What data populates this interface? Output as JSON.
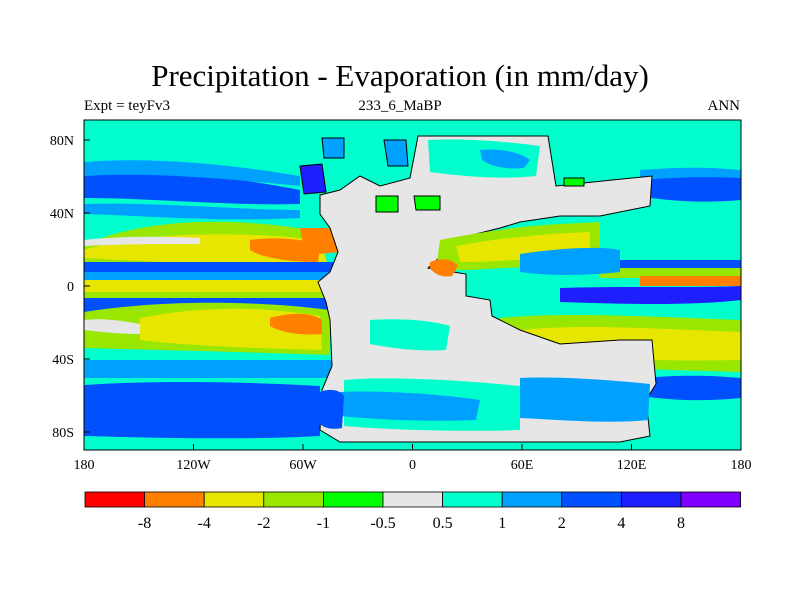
{
  "title": "Precipitation - Evaporation (in mm/day)",
  "subtitle_left": "Expt = teyFv3",
  "subtitle_center": "233_6_MaBP",
  "subtitle_right": "ANN",
  "map": {
    "x_ticks": [
      "180",
      "120W",
      "60W",
      "0",
      "60E",
      "120E",
      "180"
    ],
    "y_ticks": [
      "80N",
      "40N",
      "0",
      "40S",
      "80S"
    ]
  },
  "colorbar": {
    "colors": [
      "#ff0000",
      "#ff8000",
      "#e6e600",
      "#99e600",
      "#00ff00",
      "#e6e6e6",
      "#00ffcc",
      "#00a0ff",
      "#0050ff",
      "#1e1eff",
      "#8000ff"
    ],
    "labels": [
      "-8",
      "-4",
      "-2",
      "-1",
      "-0.5",
      "0.5",
      "1",
      "2",
      "4",
      "8"
    ]
  }
}
